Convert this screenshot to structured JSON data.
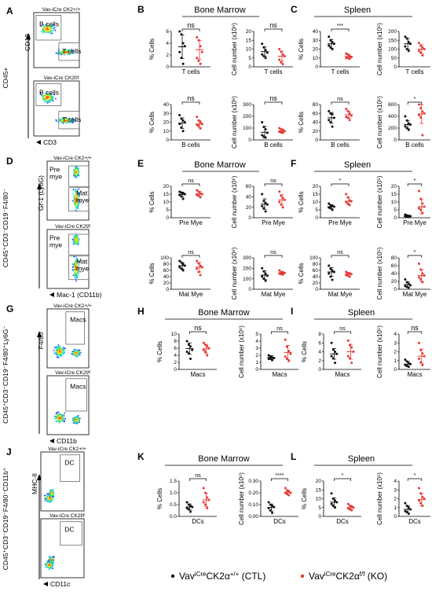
{
  "colors": {
    "ctl": "#111111",
    "ko": "#e53935",
    "gate": "#555555"
  },
  "legend": {
    "ctl": {
      "pre": "Vav",
      "sup": "iCre",
      "mid": "CK2α",
      "sup2": "+/+",
      "post": " (CTL)"
    },
    "ko": {
      "pre": "Vav",
      "sup": "iCre",
      "mid": "CK2α",
      "sup2": "f/f",
      "post": " (KO)"
    }
  },
  "flow": [
    {
      "label": "A",
      "y_axis": "CD45",
      "y_sup": "+",
      "plots": [
        {
          "title": "Vav-iCre CK2",
          "title_sup": "+/+",
          "gates": [
            "B cells",
            "T cells"
          ],
          "axis_x": "",
          "axis_y": "CD19"
        },
        {
          "title": "Vav-iCre CK2",
          "title_sup": "f/f",
          "gates": [
            "B cells",
            "T cells"
          ],
          "axis_x": "CD3",
          "axis_y": ""
        }
      ]
    },
    {
      "label": "D",
      "y_axis": "CD45⁺CD3⁻CD19⁻F4/80⁻",
      "plots": [
        {
          "title": "Vav-iCre CK2",
          "title_sup": "+/+",
          "gates": [
            "Pre\nmye",
            "Mat\nmye"
          ],
          "axis_x": "",
          "axis_y": "Gr-1 (Ly6G)"
        },
        {
          "title": "Vav-iCre CK2",
          "title_sup": "f/f",
          "gates": [
            "Pre\nmye",
            "Mat\nmye"
          ],
          "axis_x": "Mac-1 (CD11b)",
          "axis_y": ""
        }
      ]
    },
    {
      "label": "G",
      "y_axis": "CD45⁺CD3⁻CD19⁻F4/80⁺Ly6G⁻",
      "plots": [
        {
          "title": "Vav-iCre CK2",
          "title_sup": "+/+",
          "gates": [
            "Macs"
          ],
          "axis_x": "",
          "axis_y": "F4/80"
        },
        {
          "title": "Vav-iCre CK2",
          "title_sup": "f/f",
          "gates": [
            "Macs"
          ],
          "axis_x": "CD11b",
          "axis_y": ""
        }
      ]
    },
    {
      "label": "J",
      "y_axis": "CD45⁺CD3⁻CD19⁻F4/80⁻CD11b⁺",
      "plots": [
        {
          "title": "Vav-iCre CK2",
          "title_sup": "+/+",
          "gates": [
            "DC"
          ],
          "axis_x": "",
          "axis_y": "MHC-II"
        },
        {
          "title": "Vav-iCre CK2",
          "title_sup": "f/f",
          "gates": [
            "DC"
          ],
          "axis_x": "CD11c",
          "axis_y": ""
        }
      ]
    }
  ],
  "chart_data": [
    {
      "panel": "B",
      "section": "Bone Marrow",
      "type": "scatter",
      "xlabel": "T cells",
      "ylabel": "% Cells",
      "yticks": [
        "0",
        "2",
        "4",
        "6"
      ],
      "ylim": [
        0,
        6
      ],
      "sig": "ns",
      "ctl": [
        6.0,
        5.5,
        4.0,
        3.5,
        2.5,
        1.5,
        0.5
      ],
      "ko": [
        5.0,
        4.5,
        3.5,
        2.5,
        1.5,
        1.0,
        0.5
      ],
      "ctl_mean": 3.4,
      "ctl_sd": 2.0,
      "ko_mean": 2.9,
      "ko_sd": 1.6
    },
    {
      "panel": "B",
      "section": "Bone Marrow",
      "type": "scatter",
      "xlabel": "T cells",
      "ylabel": "Cell number (x10⁶)",
      "yticks": [
        "0",
        "5",
        "10",
        "15",
        "20"
      ],
      "ylim": [
        0,
        20
      ],
      "sig": "ns",
      "ctl": [
        13,
        11,
        9.5,
        8,
        7,
        6,
        5
      ],
      "ko": [
        10,
        8.5,
        7,
        6,
        4,
        2.5,
        1.5
      ],
      "ctl_mean": 8.6,
      "ctl_sd": 2.6,
      "ko_mean": 6.0,
      "ko_sd": 2.8
    },
    {
      "panel": "C",
      "section": "Spleen",
      "type": "scatter",
      "xlabel": "T cells",
      "ylabel": "% Cells",
      "yticks": [
        "0",
        "10",
        "20",
        "30",
        "40"
      ],
      "ylim": [
        0,
        40
      ],
      "sig": "***",
      "ctl": [
        34,
        30,
        28,
        26,
        24,
        22,
        20
      ],
      "ko": [
        15,
        14,
        12,
        11,
        10,
        10,
        9
      ],
      "ctl_mean": 26,
      "ctl_sd": 5,
      "ko_mean": 12,
      "ko_sd": 2
    },
    {
      "panel": "C",
      "section": "Spleen",
      "type": "scatter",
      "xlabel": "T cells",
      "ylabel": "Cell number (x10⁵)",
      "yticks": [
        "0",
        "50",
        "100",
        "150",
        "200"
      ],
      "ylim": [
        0,
        200
      ],
      "sig": "",
      "ctl": [
        170,
        160,
        140,
        130,
        115,
        100,
        90
      ],
      "ko": [
        135,
        120,
        110,
        100,
        90,
        80,
        65
      ],
      "ctl_mean": 130,
      "ctl_sd": 30,
      "ko_mean": 100,
      "ko_sd": 25
    },
    {
      "panel": "B",
      "section": "Bone Marrow",
      "type": "scatter",
      "xlabel": "B cells",
      "ylabel": "% Cells",
      "yticks": [
        "0",
        "10",
        "20",
        "30",
        "40"
      ],
      "ylim": [
        0,
        40
      ],
      "sig": "ns",
      "ctl": [
        28,
        24,
        22,
        20,
        18,
        14,
        10
      ],
      "ko": [
        26,
        22,
        20,
        18,
        17,
        16,
        13
      ],
      "ctl_mean": 19,
      "ctl_sd": 6,
      "ko_mean": 18,
      "ko_sd": 4
    },
    {
      "panel": "B",
      "section": "Bone Marrow",
      "type": "scatter",
      "xlabel": "B cells",
      "ylabel": "Cell number (x10⁶)",
      "yticks": [
        "0",
        "100",
        "200",
        "300"
      ],
      "ylim": [
        0,
        300
      ],
      "sig": "ns",
      "ctl": [
        150,
        110,
        90,
        60,
        40,
        30,
        20
      ],
      "ko": [
        100,
        90,
        80,
        75,
        70,
        65,
        60
      ],
      "ctl_mean": 65,
      "ctl_sd": 50,
      "ko_mean": 75,
      "ko_sd": 18
    },
    {
      "panel": "C",
      "section": "Spleen",
      "type": "scatter",
      "xlabel": "B cells",
      "ylabel": "% Cells",
      "yticks": [
        "0",
        "20",
        "40",
        "60",
        "80"
      ],
      "ylim": [
        0,
        80
      ],
      "sig": "ns",
      "ctl": [
        65,
        60,
        58,
        50,
        45,
        40,
        30
      ],
      "ko": [
        70,
        65,
        60,
        55,
        52,
        50,
        45
      ],
      "ctl_mean": 50,
      "ctl_sd": 12,
      "ko_mean": 57,
      "ko_sd": 8
    },
    {
      "panel": "C",
      "section": "Spleen",
      "type": "scatter",
      "xlabel": "B cells",
      "ylabel": "Cell number (x10⁵)",
      "yticks": [
        "0",
        "200",
        "400",
        "600"
      ],
      "ylim": [
        0,
        600
      ],
      "sig": "*",
      "ctl": [
        400,
        330,
        280,
        260,
        230,
        200,
        170
      ],
      "ko": [
        600,
        540,
        480,
        450,
        420,
        380,
        80
      ],
      "ctl_mean": 260,
      "ctl_sd": 70,
      "ko_mean": 440,
      "ko_sd": 160
    },
    {
      "panel": "E",
      "section": "Bone Marrow",
      "type": "scatter",
      "xlabel": "Pre Mye",
      "ylabel": "% Cells",
      "yticks": [
        "0",
        "5",
        "10",
        "15",
        "20"
      ],
      "ylim": [
        0,
        20
      ],
      "sig": "ns",
      "ctl": [
        16.5,
        16,
        15.5,
        15,
        14.5,
        13.5,
        12
      ],
      "ko": [
        17.5,
        16.5,
        15.5,
        15,
        14.5,
        14,
        13
      ],
      "ctl_mean": 14.8,
      "ctl_sd": 1.5,
      "ko_mean": 15.2,
      "ko_sd": 1.6
    },
    {
      "panel": "E",
      "section": "Bone Marrow",
      "type": "scatter",
      "xlabel": "Pre Mye",
      "ylabel": "Cell number (x10⁶)",
      "yticks": [
        "0",
        "20",
        "40",
        "60"
      ],
      "ylim": [
        0,
        60
      ],
      "sig": "ns",
      "ctl": [
        45,
        32,
        28,
        25,
        22,
        18,
        12
      ],
      "ko": [
        50,
        42,
        38,
        34,
        30,
        25,
        20
      ],
      "ctl_mean": 26,
      "ctl_sd": 10,
      "ko_mean": 34,
      "ko_sd": 10
    },
    {
      "panel": "F",
      "section": "Spleen",
      "type": "scatter",
      "xlabel": "Pre Mye",
      "ylabel": "% Cells",
      "yticks": [
        "0",
        "5",
        "10",
        "15",
        "20"
      ],
      "ylim": [
        0,
        20
      ],
      "sig": "*",
      "ctl": [
        9,
        8,
        7.5,
        7,
        6.5,
        6,
        5
      ],
      "ko": [
        15,
        13,
        11,
        10.5,
        10,
        9,
        8
      ],
      "ctl_mean": 7,
      "ctl_sd": 1.3,
      "ko_mean": 10.5,
      "ko_sd": 2.3
    },
    {
      "panel": "F",
      "section": "Spleen",
      "type": "scatter",
      "xlabel": "Pre Mye",
      "ylabel": "Cell number (x10⁵)",
      "yticks": [
        "0",
        "5",
        "10",
        "15",
        "20"
      ],
      "ylim": [
        0,
        20
      ],
      "sig": "*",
      "ctl": [
        2,
        1.5,
        1.2,
        1,
        0.8,
        0.6,
        0.5
      ],
      "ko": [
        17,
        12,
        9,
        7,
        6,
        5,
        3
      ],
      "ctl_mean": 1.1,
      "ctl_sd": 0.5,
      "ko_mean": 7,
      "ko_sd": 4.5
    },
    {
      "panel": "E",
      "section": "Bone Marrow",
      "type": "scatter",
      "xlabel": "Mat Mye",
      "ylabel": "% Cells",
      "yticks": [
        "0",
        "20",
        "40",
        "60",
        "80",
        "100"
      ],
      "ylim": [
        0,
        100
      ],
      "sig": "ns",
      "ctl": [
        90,
        85,
        80,
        75,
        70,
        65,
        60
      ],
      "ko": [
        90,
        82,
        75,
        70,
        65,
        55,
        45
      ],
      "ctl_mean": 75,
      "ctl_sd": 10,
      "ko_mean": 70,
      "ko_sd": 15
    },
    {
      "panel": "E",
      "section": "Bone Marrow",
      "type": "scatter",
      "xlabel": "Mat Mye",
      "ylabel": "Cell number (x10⁶)",
      "yticks": [
        "0",
        "100",
        "200",
        "300"
      ],
      "ylim": [
        0,
        300
      ],
      "sig": "ns",
      "ctl": [
        200,
        170,
        150,
        130,
        120,
        100,
        80
      ],
      "ko": [
        180,
        165,
        160,
        155,
        150,
        145,
        140
      ],
      "ctl_mean": 135,
      "ctl_sd": 40,
      "ko_mean": 155,
      "ko_sd": 15
    },
    {
      "panel": "F",
      "section": "Spleen",
      "type": "scatter",
      "xlabel": "Mat Mye",
      "ylabel": "% Cells",
      "yticks": [
        "0",
        "20",
        "40",
        "60",
        "80",
        "100"
      ],
      "ylim": [
        0,
        100
      ],
      "sig": "ns",
      "ctl": [
        75,
        65,
        60,
        55,
        50,
        40,
        30
      ],
      "ko": [
        55,
        52,
        50,
        48,
        45,
        43,
        40
      ],
      "ctl_mean": 55,
      "ctl_sd": 14,
      "ko_mean": 48,
      "ko_sd": 5
    },
    {
      "panel": "F",
      "section": "Spleen",
      "type": "scatter",
      "xlabel": "Mat Mye",
      "ylabel": "Cell number (x10⁵)",
      "yticks": [
        "0",
        "20",
        "40",
        "60",
        "80"
      ],
      "ylim": [
        0,
        80
      ],
      "sig": "*",
      "ctl": [
        25,
        18,
        14,
        10,
        8,
        6,
        4
      ],
      "ko": [
        65,
        50,
        40,
        35,
        30,
        25,
        18
      ],
      "ctl_mean": 12,
      "ctl_sd": 7,
      "ko_mean": 35,
      "ko_sd": 15
    },
    {
      "panel": "H",
      "section": "Bone Marrow",
      "type": "scatter",
      "xlabel": "Macs",
      "ylabel": "% Cells",
      "yticks": [
        "0",
        "2",
        "4",
        "6",
        "8",
        "10"
      ],
      "ylim": [
        0,
        10
      ],
      "sig": "ns",
      "ctl": [
        8,
        7,
        6.5,
        5.5,
        5,
        4.5,
        3
      ],
      "ko": [
        7.5,
        7,
        6.5,
        6,
        5.5,
        5,
        4
      ],
      "ctl_mean": 5.9,
      "ctl_sd": 1.6,
      "ko_mean": 5.8,
      "ko_sd": 1.2
    },
    {
      "panel": "H",
      "section": "Bone Marrow",
      "type": "scatter",
      "xlabel": "Macs",
      "ylabel": "Cell number (x10⁵)",
      "yticks": [
        "0",
        "1",
        "2",
        "3",
        "4",
        "5"
      ],
      "ylim": [
        0,
        5
      ],
      "sig": "ns",
      "ctl": [
        2,
        1.8,
        1.7,
        1.6,
        1.5,
        1.5,
        1.3
      ],
      "ko": [
        4.2,
        3.2,
        2.6,
        2.2,
        1.8,
        1.5,
        1.2
      ],
      "ctl_mean": 1.7,
      "ctl_sd": 0.25,
      "ko_mean": 2.4,
      "ko_sd": 1.0
    },
    {
      "panel": "I",
      "section": "Spleen",
      "type": "scatter",
      "xlabel": "Macs",
      "ylabel": "% Cells",
      "yticks": [
        "0",
        "2",
        "4",
        "6",
        "8"
      ],
      "ylim": [
        0,
        8
      ],
      "sig": "ns",
      "ctl": [
        6,
        4.5,
        4,
        3.5,
        3,
        2.5,
        1.5
      ],
      "ko": [
        6.5,
        5.5,
        5,
        4,
        3,
        2.5,
        1.5
      ],
      "ctl_mean": 3.5,
      "ctl_sd": 1.2,
      "ko_mean": 4,
      "ko_sd": 1.7
    },
    {
      "panel": "I",
      "section": "Spleen",
      "type": "scatter",
      "xlabel": "Macs",
      "ylabel": "Cell number (x10⁵)",
      "yticks": [
        "0",
        "1",
        "2",
        "3",
        "4"
      ],
      "ylim": [
        0,
        4
      ],
      "sig": "ns",
      "ctl": [
        1.1,
        0.9,
        0.7,
        0.6,
        0.5,
        0.4,
        0.3
      ],
      "ko": [
        3,
        2.2,
        1.8,
        1.5,
        1.2,
        0.8,
        0.5
      ],
      "ctl_mean": 0.6,
      "ctl_sd": 0.3,
      "ko_mean": 1.5,
      "ko_sd": 0.8
    },
    {
      "panel": "K",
      "section": "Bone Marrow",
      "type": "scatter",
      "xlabel": "DCs",
      "ylabel": "% Cells",
      "yticks": [
        "0.0",
        "0.5",
        "1.0",
        "1.5"
      ],
      "ylim": [
        0,
        1.5
      ],
      "sig": "ns",
      "ctl": [
        0.6,
        0.5,
        0.45,
        0.4,
        0.35,
        0.3,
        0.2
      ],
      "ko": [
        1.2,
        1.0,
        0.8,
        0.7,
        0.6,
        0.5,
        0.35
      ],
      "ctl_mean": 0.4,
      "ctl_sd": 0.13,
      "ko_mean": 0.7,
      "ko_sd": 0.28
    },
    {
      "panel": "K",
      "section": "Bone Marrow",
      "type": "scatter",
      "xlabel": "DCs",
      "ylabel": "Cell number (x10⁵)",
      "yticks": [
        "0.00",
        "0.10",
        "0.20",
        "0.30"
      ],
      "ylim": [
        0,
        0.3
      ],
      "sig": "****",
      "ctl": [
        0.12,
        0.1,
        0.09,
        0.08,
        0.07,
        0.05,
        0.03
      ],
      "ko": [
        0.24,
        0.22,
        0.21,
        0.2,
        0.2,
        0.19,
        0.18
      ],
      "ctl_mean": 0.075,
      "ctl_sd": 0.03,
      "ko_mean": 0.205,
      "ko_sd": 0.02
    },
    {
      "panel": "L",
      "section": "Spleen",
      "type": "scatter",
      "xlabel": "DCs",
      "ylabel": "% Cells",
      "yticks": [
        "0",
        "5",
        "10",
        "15",
        "20"
      ],
      "ylim": [
        0,
        20
      ],
      "sig": "*",
      "ctl": [
        13,
        10,
        9,
        8,
        7,
        6,
        5
      ],
      "ko": [
        7,
        6,
        5.5,
        5,
        4.5,
        4,
        3.5
      ],
      "ctl_mean": 8,
      "ctl_sd": 2.5,
      "ko_mean": 5,
      "ko_sd": 1.2
    },
    {
      "panel": "L",
      "section": "Spleen",
      "type": "scatter",
      "xlabel": "DCs",
      "ylabel": "Cell number (x10⁵)",
      "yticks": [
        "0",
        "1",
        "2",
        "3",
        "4"
      ],
      "ylim": [
        0,
        4
      ],
      "sig": "*",
      "ctl": [
        1.5,
        1.2,
        1.0,
        0.8,
        0.6,
        0.5,
        0.3
      ],
      "ko": [
        3.2,
        2.6,
        2.2,
        2.0,
        1.8,
        1.5,
        1.2
      ],
      "ctl_mean": 0.8,
      "ctl_sd": 0.4,
      "ko_mean": 1.9,
      "ko_sd": 0.7
    }
  ],
  "section_titles": [
    {
      "panel": "B",
      "title": "Bone Marrow"
    },
    {
      "panel": "C",
      "title": "Spleen"
    },
    {
      "panel": "E",
      "title": "Bone Marrow"
    },
    {
      "panel": "F",
      "title": "Spleen"
    },
    {
      "panel": "H",
      "title": "Bone Marrow"
    },
    {
      "panel": "I",
      "title": "Spleen"
    },
    {
      "panel": "K",
      "title": "Bone Marrow"
    },
    {
      "panel": "L",
      "title": "Spleen"
    }
  ]
}
